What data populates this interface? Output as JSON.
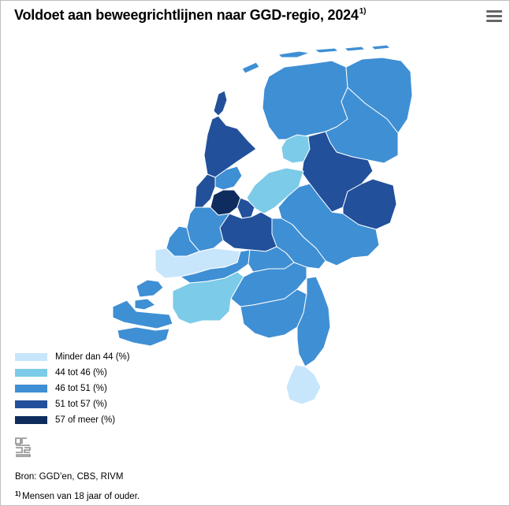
{
  "title": "Voldoet aan beweegrichtlijnen naar GGD-regio, 2024",
  "title_note_marker": "1)",
  "menu_icon": "hamburger-menu-icon",
  "legend": [
    {
      "label": "Minder dan 44 (%)",
      "color": "#c8e6fb"
    },
    {
      "label": "44 tot 46 (%)",
      "color": "#7ccbe8"
    },
    {
      "label": "46 tot 51 (%)",
      "color": "#3f8fd4"
    },
    {
      "label": "51 tot 57 (%)",
      "color": "#22509b"
    },
    {
      "label": "57 of meer (%)",
      "color": "#0f2c5e"
    }
  ],
  "logo_icon": "cbs-logo-icon",
  "source": "Bron: GGD’en, CBS, RIVM",
  "footnote_marker": "1)",
  "footnote": "Mensen van 18 jaar of ouder."
}
